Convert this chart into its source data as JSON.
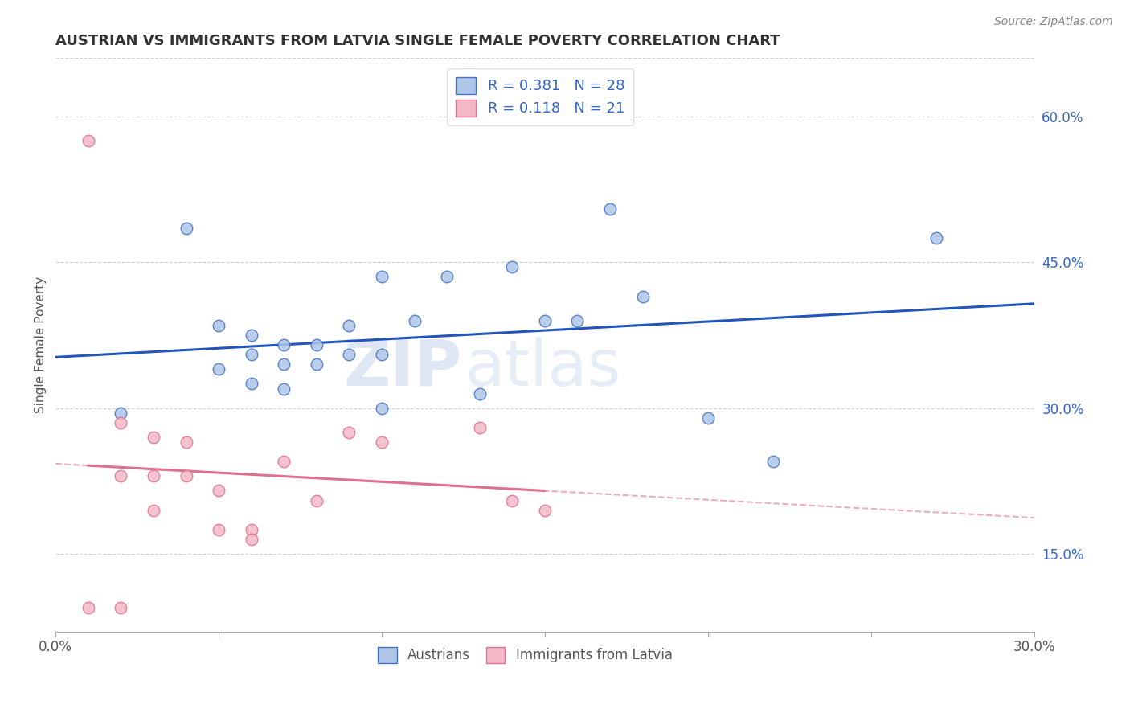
{
  "title": "AUSTRIAN VS IMMIGRANTS FROM LATVIA SINGLE FEMALE POVERTY CORRELATION CHART",
  "source": "Source: ZipAtlas.com",
  "ylabel": "Single Female Poverty",
  "xlim": [
    0.0,
    0.3
  ],
  "ylim": [
    0.07,
    0.66
  ],
  "x_ticks": [
    0.0,
    0.05,
    0.1,
    0.15,
    0.2,
    0.25,
    0.3
  ],
  "x_tick_labels": [
    "0.0%",
    "",
    "",
    "",
    "",
    "",
    "30.0%"
  ],
  "y_ticks_right": [
    0.15,
    0.3,
    0.45,
    0.6
  ],
  "y_tick_labels_right": [
    "15.0%",
    "30.0%",
    "45.0%",
    "60.0%"
  ],
  "austrians_x": [
    0.02,
    0.04,
    0.05,
    0.06,
    0.06,
    0.07,
    0.07,
    0.08,
    0.08,
    0.09,
    0.09,
    0.1,
    0.1,
    0.11,
    0.12,
    0.13,
    0.14,
    0.15,
    0.16,
    0.17,
    0.18,
    0.2,
    0.22,
    0.1,
    0.07,
    0.06,
    0.05,
    0.27
  ],
  "austrians_y": [
    0.295,
    0.485,
    0.385,
    0.355,
    0.375,
    0.345,
    0.365,
    0.345,
    0.365,
    0.355,
    0.385,
    0.355,
    0.435,
    0.39,
    0.435,
    0.315,
    0.445,
    0.39,
    0.39,
    0.505,
    0.415,
    0.29,
    0.245,
    0.3,
    0.32,
    0.325,
    0.34,
    0.475
  ],
  "latvians_x": [
    0.01,
    0.01,
    0.02,
    0.02,
    0.02,
    0.03,
    0.03,
    0.03,
    0.04,
    0.04,
    0.05,
    0.05,
    0.06,
    0.06,
    0.07,
    0.08,
    0.09,
    0.1,
    0.13,
    0.14,
    0.15
  ],
  "latvians_y": [
    0.575,
    0.095,
    0.23,
    0.285,
    0.095,
    0.27,
    0.23,
    0.195,
    0.265,
    0.23,
    0.215,
    0.175,
    0.175,
    0.165,
    0.245,
    0.205,
    0.275,
    0.265,
    0.28,
    0.205,
    0.195
  ],
  "austrians_color": "#aec6e8",
  "austrians_edge_color": "#4472c4",
  "latvians_color": "#f4b8c8",
  "latvians_edge_color": "#e07090",
  "trend_blue_color": "#2255bb",
  "trend_pink_solid_color": "#e07090",
  "trend_pink_dash_color": "#e8a0b0",
  "R_austrians": 0.381,
  "N_austrians": 28,
  "R_latvians": 0.118,
  "N_latvians": 21,
  "watermark_zip": "ZIP",
  "watermark_atlas": "atlas",
  "scatter_size": 110,
  "background_color": "#ffffff",
  "grid_color": "#cccccc",
  "legend_text_color": "#3366cc"
}
